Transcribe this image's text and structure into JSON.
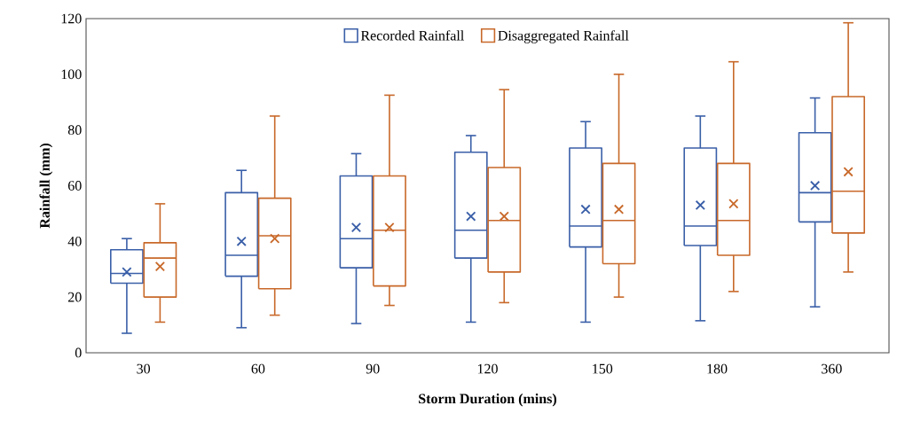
{
  "chart_data": {
    "type": "box",
    "xlabel": "Storm Duration (mins)",
    "ylabel": "Rainfall (mm)",
    "categories": [
      "30",
      "60",
      "90",
      "120",
      "150",
      "180",
      "360"
    ],
    "ylim": [
      0,
      120
    ],
    "yticks": [
      0,
      20,
      40,
      60,
      80,
      100,
      120
    ],
    "legend": "top",
    "marker": "cross",
    "series": [
      {
        "name": "Recorded Rainfall",
        "color": "#3a5fa8",
        "boxes": [
          {
            "low": 7,
            "q1": 25,
            "median": 28.5,
            "q3": 37,
            "high": 41,
            "mean": 29
          },
          {
            "low": 9,
            "q1": 27.5,
            "median": 35,
            "q3": 57.5,
            "high": 65.5,
            "mean": 40
          },
          {
            "low": 10.5,
            "q1": 30.5,
            "median": 41,
            "q3": 63.5,
            "high": 71.5,
            "mean": 45
          },
          {
            "low": 11,
            "q1": 34,
            "median": 44,
            "q3": 72,
            "high": 78,
            "mean": 49
          },
          {
            "low": 11,
            "q1": 38,
            "median": 45.5,
            "q3": 73.5,
            "high": 83,
            "mean": 51.5
          },
          {
            "low": 11.5,
            "q1": 38.5,
            "median": 45.5,
            "q3": 73.5,
            "high": 85,
            "mean": 53
          },
          {
            "low": 16.5,
            "q1": 47,
            "median": 57.5,
            "q3": 79,
            "high": 91.5,
            "mean": 60
          }
        ]
      },
      {
        "name": "Disaggregated Rainfall",
        "color": "#c8692a",
        "boxes": [
          {
            "low": 11,
            "q1": 20,
            "median": 34,
            "q3": 39.5,
            "high": 53.5,
            "mean": 31
          },
          {
            "low": 13.5,
            "q1": 23,
            "median": 42,
            "q3": 55.5,
            "high": 85,
            "mean": 41
          },
          {
            "low": 17,
            "q1": 24,
            "median": 44,
            "q3": 63.5,
            "high": 92.5,
            "mean": 45
          },
          {
            "low": 18,
            "q1": 29,
            "median": 47.5,
            "q3": 66.5,
            "high": 94.5,
            "mean": 49
          },
          {
            "low": 20,
            "q1": 32,
            "median": 47.5,
            "q3": 68,
            "high": 100,
            "mean": 51.5
          },
          {
            "low": 22,
            "q1": 35,
            "median": 47.5,
            "q3": 68,
            "high": 104.5,
            "mean": 53.5
          },
          {
            "low": 29,
            "q1": 43,
            "median": 58,
            "q3": 92,
            "high": 118.5,
            "mean": 65
          }
        ]
      }
    ]
  }
}
